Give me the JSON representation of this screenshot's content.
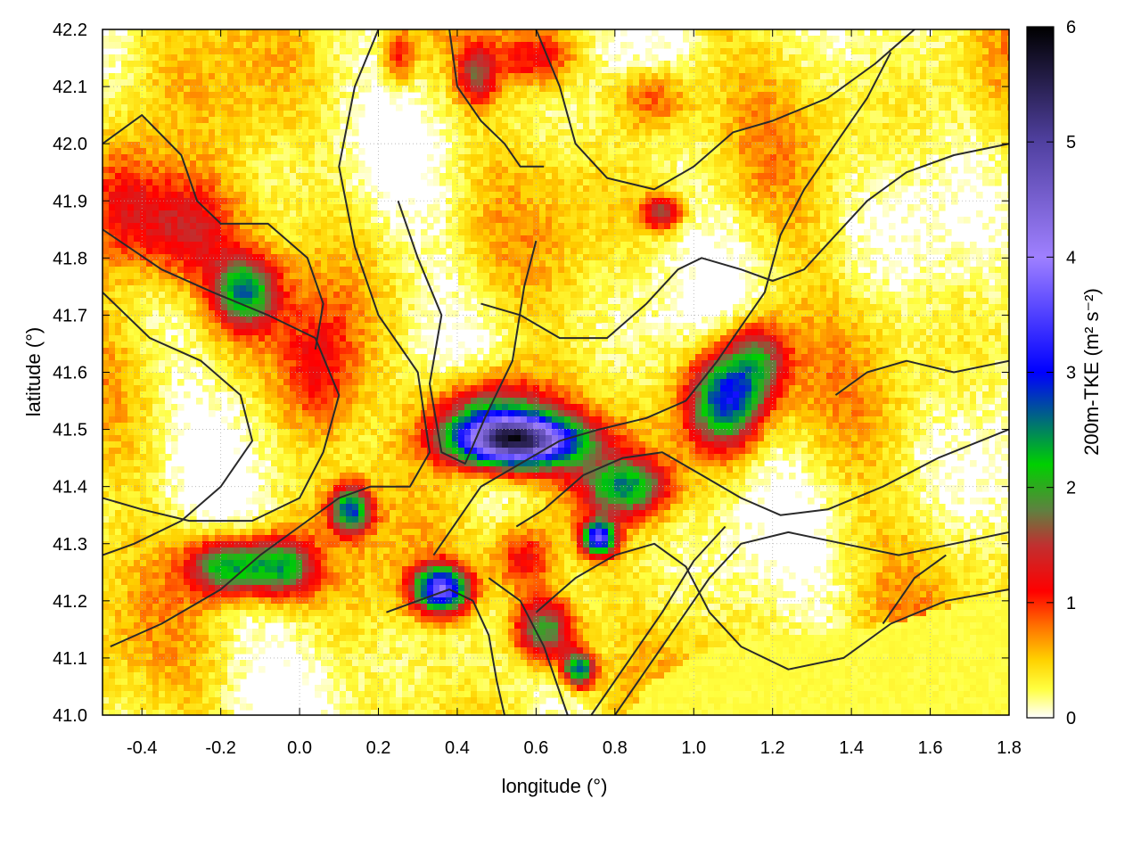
{
  "chart_data": {
    "type": "heatmap",
    "title": "",
    "xlabel": "longitude (°)",
    "ylabel": "latitude (°)",
    "xlim": [
      -0.5,
      1.8
    ],
    "ylim": [
      41.0,
      42.2
    ],
    "x_ticks": [
      "-0.4",
      "-0.2",
      "0.0",
      "0.2",
      "0.4",
      "0.6",
      "0.8",
      "1.0",
      "1.2",
      "1.4",
      "1.6",
      "1.8"
    ],
    "y_ticks": [
      "41.0",
      "41.1",
      "41.2",
      "41.3",
      "41.4",
      "41.5",
      "41.6",
      "41.7",
      "41.8",
      "41.9",
      "42.0",
      "42.1",
      "42.2"
    ],
    "grid": true,
    "colorbar": {
      "label": "200m-TKE (m² s⁻²)",
      "range": [
        0,
        6
      ],
      "ticks": [
        "0",
        "1",
        "2",
        "3",
        "4",
        "5",
        "6"
      ],
      "stops": [
        {
          "value": 0.0,
          "color": "#ffffff"
        },
        {
          "value": 0.25,
          "color": "#ffff40"
        },
        {
          "value": 0.5,
          "color": "#ffd200"
        },
        {
          "value": 0.8,
          "color": "#ff7000"
        },
        {
          "value": 1.1,
          "color": "#ff0000"
        },
        {
          "value": 1.5,
          "color": "#c03030"
        },
        {
          "value": 1.8,
          "color": "#608040"
        },
        {
          "value": 2.2,
          "color": "#00d000"
        },
        {
          "value": 3.0,
          "color": "#0000ff"
        },
        {
          "value": 4.0,
          "color": "#9f80ff"
        },
        {
          "value": 5.0,
          "color": "#5040a0"
        },
        {
          "value": 6.0,
          "color": "#000000"
        }
      ]
    },
    "hotspots": [
      {
        "lon": 0.55,
        "lat": 41.48,
        "tke": 4.8,
        "slon": 0.16,
        "slat": 0.045
      },
      {
        "lon": 0.48,
        "lat": 41.53,
        "tke": 1.8,
        "slon": 0.14,
        "slat": 0.07
      },
      {
        "lon": 1.08,
        "lat": 41.55,
        "tke": 2.6,
        "slon": 0.09,
        "slat": 0.08
      },
      {
        "lon": 1.16,
        "lat": 41.62,
        "tke": 1.6,
        "slon": 0.08,
        "slat": 0.07
      },
      {
        "lon": 0.83,
        "lat": 41.4,
        "tke": 2.0,
        "slon": 0.1,
        "slat": 0.05
      },
      {
        "lon": 0.76,
        "lat": 41.31,
        "tke": 3.2,
        "slon": 0.04,
        "slat": 0.03
      },
      {
        "lon": -0.18,
        "lat": 41.26,
        "tke": 2.2,
        "slon": 0.1,
        "slat": 0.05
      },
      {
        "lon": -0.04,
        "lat": 41.26,
        "tke": 1.8,
        "slon": 0.08,
        "slat": 0.05
      },
      {
        "lon": 0.36,
        "lat": 41.22,
        "tke": 3.4,
        "slon": 0.07,
        "slat": 0.04
      },
      {
        "lon": 0.62,
        "lat": 41.15,
        "tke": 2.2,
        "slon": 0.08,
        "slat": 0.06
      },
      {
        "lon": 0.71,
        "lat": 41.08,
        "tke": 2.6,
        "slon": 0.04,
        "slat": 0.03
      },
      {
        "lon": -0.14,
        "lat": 41.74,
        "tke": 2.0,
        "slon": 0.08,
        "slat": 0.06
      },
      {
        "lon": -0.3,
        "lat": 41.85,
        "tke": 1.3,
        "slon": 0.14,
        "slat": 0.1
      },
      {
        "lon": -0.45,
        "lat": 41.9,
        "tke": 1.0,
        "slon": 0.1,
        "slat": 0.12
      },
      {
        "lon": 0.13,
        "lat": 41.36,
        "tke": 2.4,
        "slon": 0.05,
        "slat": 0.04
      },
      {
        "lon": 0.6,
        "lat": 42.15,
        "tke": 1.0,
        "slon": 0.1,
        "slat": 0.05
      },
      {
        "lon": 0.9,
        "lat": 42.08,
        "tke": 0.9,
        "slon": 0.1,
        "slat": 0.06
      },
      {
        "lon": 0.92,
        "lat": 41.88,
        "tke": 1.4,
        "slon": 0.05,
        "slat": 0.03
      },
      {
        "lon": 0.45,
        "lat": 42.12,
        "tke": 1.2,
        "slon": 0.05,
        "slat": 0.05
      },
      {
        "lon": 0.25,
        "lat": 42.15,
        "tke": 0.9,
        "slon": 0.04,
        "slat": 0.05
      },
      {
        "lon": 0.57,
        "lat": 41.27,
        "tke": 1.2,
        "slon": 0.08,
        "slat": 0.06
      },
      {
        "lon": 0.05,
        "lat": 41.6,
        "tke": 0.8,
        "slon": 0.1,
        "slat": 0.12
      }
    ],
    "contours": [
      [
        [
          -0.5,
          41.74
        ],
        [
          -0.38,
          41.66
        ],
        [
          -0.25,
          41.62
        ],
        [
          -0.15,
          41.56
        ],
        [
          -0.12,
          41.48
        ],
        [
          -0.2,
          41.4
        ],
        [
          -0.3,
          41.34
        ],
        [
          -0.42,
          41.3
        ],
        [
          -0.5,
          41.28
        ]
      ],
      [
        [
          -0.5,
          41.85
        ],
        [
          -0.35,
          41.78
        ],
        [
          -0.22,
          41.74
        ],
        [
          -0.08,
          41.7
        ],
        [
          0.04,
          41.66
        ],
        [
          0.1,
          41.56
        ],
        [
          0.06,
          41.46
        ],
        [
          0.0,
          41.38
        ],
        [
          -0.12,
          41.34
        ],
        [
          -0.28,
          41.34
        ],
        [
          -0.4,
          41.36
        ],
        [
          -0.5,
          41.38
        ]
      ],
      [
        [
          -0.5,
          42.0
        ],
        [
          -0.4,
          42.05
        ],
        [
          -0.3,
          41.98
        ],
        [
          -0.26,
          41.9
        ],
        [
          -0.2,
          41.86
        ],
        [
          -0.08,
          41.86
        ],
        [
          0.02,
          41.8
        ],
        [
          0.06,
          41.72
        ],
        [
          0.04,
          41.64
        ]
      ],
      [
        [
          -0.48,
          41.12
        ],
        [
          -0.35,
          41.16
        ],
        [
          -0.2,
          41.22
        ],
        [
          -0.1,
          41.28
        ],
        [
          0.0,
          41.33
        ],
        [
          0.1,
          41.38
        ],
        [
          0.18,
          41.4
        ],
        [
          0.28,
          41.4
        ],
        [
          0.33,
          41.46
        ],
        [
          0.3,
          41.6
        ],
        [
          0.2,
          41.7
        ],
        [
          0.14,
          41.82
        ],
        [
          0.1,
          41.96
        ],
        [
          0.14,
          42.1
        ],
        [
          0.2,
          42.2
        ]
      ],
      [
        [
          0.25,
          41.9
        ],
        [
          0.3,
          41.8
        ],
        [
          0.36,
          41.7
        ],
        [
          0.33,
          41.58
        ],
        [
          0.36,
          41.46
        ],
        [
          0.42,
          41.44
        ],
        [
          0.47,
          41.52
        ],
        [
          0.54,
          41.62
        ],
        [
          0.57,
          41.75
        ],
        [
          0.6,
          41.83
        ]
      ],
      [
        [
          0.22,
          41.18
        ],
        [
          0.3,
          41.2
        ],
        [
          0.38,
          41.22
        ],
        [
          0.44,
          41.2
        ],
        [
          0.48,
          41.14
        ],
        [
          0.5,
          41.06
        ],
        [
          0.52,
          41.0
        ]
      ],
      [
        [
          0.34,
          41.28
        ],
        [
          0.4,
          41.34
        ],
        [
          0.46,
          41.4
        ],
        [
          0.56,
          41.44
        ],
        [
          0.66,
          41.48
        ],
        [
          0.76,
          41.5
        ],
        [
          0.88,
          41.52
        ],
        [
          0.98,
          41.55
        ],
        [
          1.06,
          41.62
        ],
        [
          1.12,
          41.68
        ],
        [
          1.18,
          41.74
        ],
        [
          1.22,
          41.84
        ],
        [
          1.28,
          41.92
        ],
        [
          1.36,
          42.0
        ],
        [
          1.44,
          42.08
        ],
        [
          1.5,
          42.16
        ]
      ],
      [
        [
          0.55,
          41.33
        ],
        [
          0.62,
          41.36
        ],
        [
          0.72,
          41.42
        ],
        [
          0.82,
          41.45
        ],
        [
          0.92,
          41.46
        ],
        [
          1.02,
          41.42
        ],
        [
          1.12,
          41.38
        ],
        [
          1.22,
          41.35
        ],
        [
          1.34,
          41.36
        ],
        [
          1.48,
          41.4
        ],
        [
          1.62,
          41.45
        ],
        [
          1.8,
          41.5
        ]
      ],
      [
        [
          0.48,
          41.24
        ],
        [
          0.56,
          41.2
        ],
        [
          0.62,
          41.12
        ],
        [
          0.66,
          41.04
        ],
        [
          0.68,
          41.0
        ]
      ],
      [
        [
          0.6,
          41.18
        ],
        [
          0.7,
          41.24
        ],
        [
          0.8,
          41.28
        ],
        [
          0.9,
          41.3
        ],
        [
          0.98,
          41.26
        ],
        [
          1.04,
          41.18
        ],
        [
          1.12,
          41.12
        ],
        [
          1.24,
          41.08
        ],
        [
          1.38,
          41.1
        ],
        [
          1.5,
          41.16
        ],
        [
          1.64,
          41.2
        ],
        [
          1.8,
          41.22
        ]
      ],
      [
        [
          0.8,
          41.0
        ],
        [
          0.88,
          41.08
        ],
        [
          0.96,
          41.16
        ],
        [
          1.04,
          41.24
        ],
        [
          1.12,
          41.3
        ],
        [
          1.24,
          41.32
        ],
        [
          1.38,
          41.3
        ],
        [
          1.52,
          41.28
        ],
        [
          1.66,
          41.3
        ],
        [
          1.8,
          41.32
        ]
      ],
      [
        [
          0.74,
          41.0
        ],
        [
          0.84,
          41.1
        ],
        [
          0.92,
          41.18
        ],
        [
          1.0,
          41.27
        ],
        [
          1.08,
          41.33
        ]
      ],
      [
        [
          0.6,
          42.2
        ],
        [
          0.66,
          42.1
        ],
        [
          0.7,
          42.0
        ],
        [
          0.78,
          41.94
        ],
        [
          0.9,
          41.92
        ],
        [
          1.0,
          41.96
        ],
        [
          1.1,
          42.02
        ],
        [
          1.2,
          42.04
        ],
        [
          1.34,
          42.08
        ],
        [
          1.46,
          42.14
        ],
        [
          1.56,
          42.2
        ]
      ],
      [
        [
          0.46,
          41.72
        ],
        [
          0.56,
          41.7
        ],
        [
          0.66,
          41.66
        ],
        [
          0.78,
          41.66
        ],
        [
          0.88,
          41.72
        ],
        [
          0.96,
          41.78
        ],
        [
          1.02,
          41.8
        ],
        [
          1.12,
          41.78
        ],
        [
          1.2,
          41.76
        ],
        [
          1.28,
          41.78
        ],
        [
          1.36,
          41.84
        ],
        [
          1.44,
          41.9
        ],
        [
          1.54,
          41.95
        ],
        [
          1.66,
          41.98
        ],
        [
          1.8,
          42.0
        ]
      ],
      [
        [
          1.36,
          41.56
        ],
        [
          1.44,
          41.6
        ],
        [
          1.54,
          41.62
        ],
        [
          1.66,
          41.6
        ],
        [
          1.8,
          41.62
        ]
      ],
      [
        [
          1.48,
          41.16
        ],
        [
          1.56,
          41.24
        ],
        [
          1.64,
          41.28
        ]
      ],
      [
        [
          0.38,
          42.2
        ],
        [
          0.4,
          42.1
        ],
        [
          0.46,
          42.04
        ],
        [
          0.52,
          42.0
        ],
        [
          0.56,
          41.96
        ],
        [
          0.62,
          41.96
        ]
      ]
    ],
    "coast": [
      [
        0.82,
        41.0
      ],
      [
        0.9,
        41.06
      ],
      [
        1.0,
        41.1
      ],
      [
        1.1,
        41.13
      ],
      [
        1.2,
        41.14
      ],
      [
        1.3,
        41.14
      ],
      [
        1.4,
        41.15
      ],
      [
        1.5,
        41.16
      ],
      [
        1.6,
        41.18
      ],
      [
        1.7,
        41.2
      ],
      [
        1.8,
        41.21
      ]
    ]
  }
}
